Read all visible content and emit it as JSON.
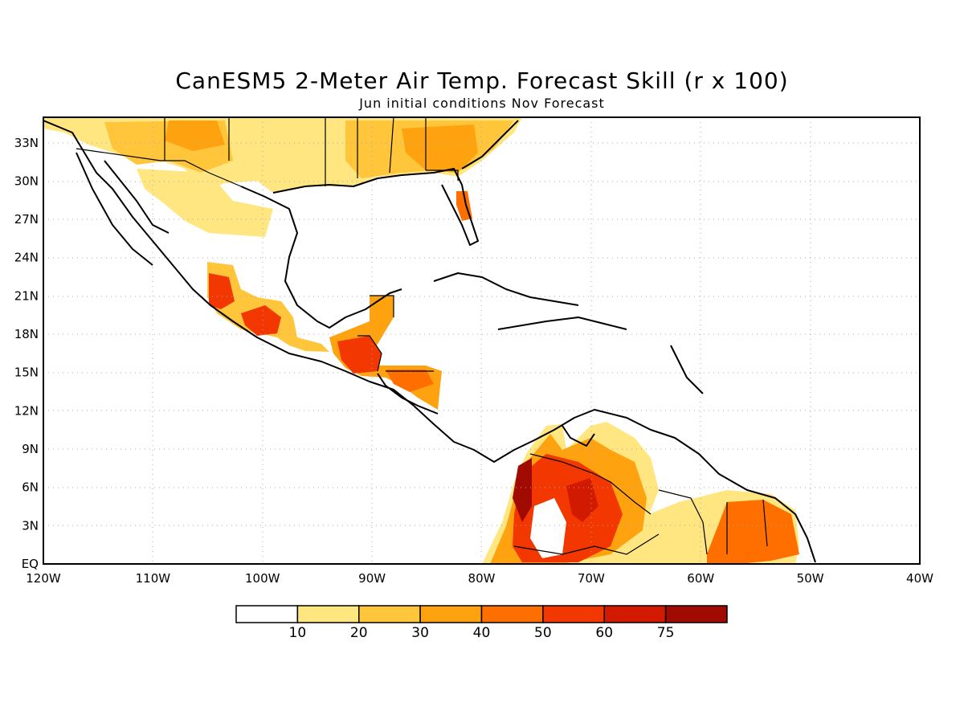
{
  "title": "CanESM5 2-Meter Air Temp. Forecast Skill (r x 100)",
  "subtitle": "Jun initial conditions  Nov Forecast",
  "map": {
    "lon_range": [
      -120,
      -40
    ],
    "lat_range": [
      0,
      35
    ],
    "lon_ticks": [
      "120W",
      "110W",
      "100W",
      "90W",
      "80W",
      "70W",
      "60W",
      "50W",
      "40W"
    ],
    "lat_ticks": [
      "EQ",
      "3N",
      "6N",
      "9N",
      "12N",
      "15N",
      "18N",
      "21N",
      "24N",
      "27N",
      "30N",
      "33N"
    ],
    "grid": "dotted"
  },
  "legend": {
    "labels": [
      "10",
      "20",
      "30",
      "40",
      "50",
      "60",
      "75"
    ],
    "colors": [
      "#ffffff",
      "#ffe680",
      "#ffc53b",
      "#ffa20f",
      "#ff6f00",
      "#f23800",
      "#d11a00",
      "#a00a00"
    ]
  }
}
